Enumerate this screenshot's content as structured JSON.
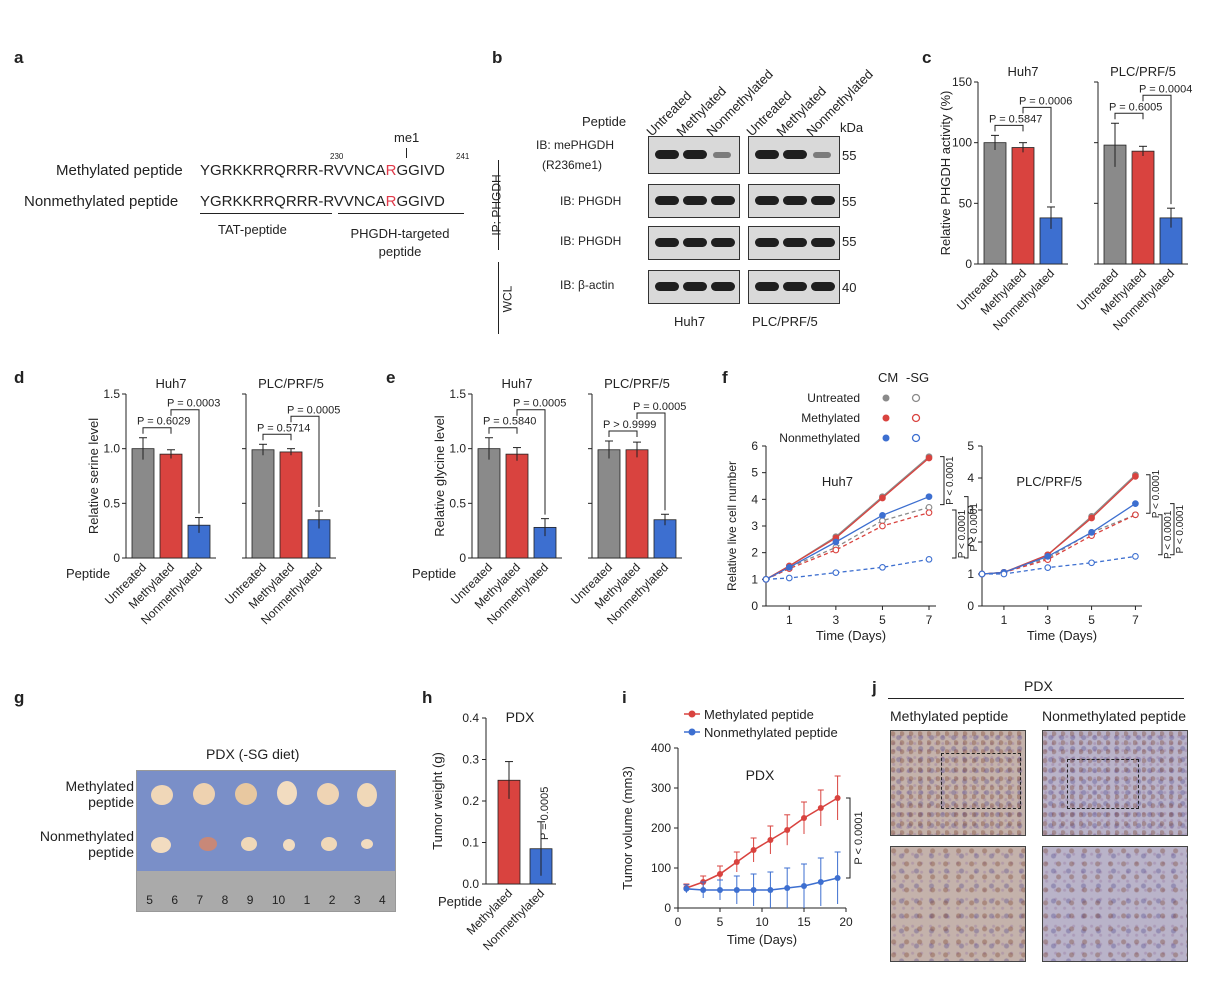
{
  "panels": {
    "a": "a",
    "b": "b",
    "c": "c",
    "d": "d",
    "e": "e",
    "f": "f",
    "g": "g",
    "h": "h",
    "i": "i",
    "j": "j"
  },
  "a": {
    "me1": "me1",
    "num_left": "230",
    "num_right": "241",
    "rows": [
      {
        "label": "Methylated peptide",
        "seq_pre": "YGRKKRRQRRR-RVVNCA",
        "seq_r": "R",
        "seq_post": "GGIVD"
      },
      {
        "label": "Nonmethylated peptide",
        "seq_pre": "YGRKKRRQRRR-RVVNCA",
        "seq_r": "R",
        "seq_post": "GGIVD"
      }
    ],
    "tat_label": "TAT-peptide",
    "phgdh_label_1": "PHGDH-targeted",
    "phgdh_label_2": "peptide",
    "r_color": "#e03a4a"
  },
  "b": {
    "peptide": "Peptide",
    "lanes": [
      "Untreated",
      "Methylated",
      "Nonmethylated",
      "Untreated",
      "Methylated",
      "Nonmethylated"
    ],
    "kda": "kDa",
    "ip": "IP: PHGDH",
    "wcl": "WCL",
    "rows": [
      {
        "label1": "IB: mePHGDH",
        "label2": "(R236me1)",
        "kda": "55"
      },
      {
        "label1": "IB: PHGDH",
        "label2": "",
        "kda": "55"
      },
      {
        "label1": "IB: PHGDH",
        "label2": "",
        "kda": "55"
      },
      {
        "label1": "IB: β-actin",
        "label2": "",
        "kda": "40"
      }
    ],
    "cells": [
      "Huh7",
      "PLC/PRF/5"
    ]
  },
  "colors": {
    "untreated": "#8a8a8a",
    "methylated": "#d9433f",
    "nonmethylated": "#3d6fd0"
  },
  "chart_data": [
    {
      "id": "c",
      "type": "bar",
      "ylabel": "Relative PHGDH activity (%)",
      "ylim": [
        0,
        150
      ],
      "yticks": [
        0,
        50,
        100,
        150
      ],
      "categories": [
        "Untreated",
        "Methylated",
        "Nonmethylated"
      ],
      "groups": [
        {
          "name": "Huh7",
          "values": [
            100,
            96,
            38
          ],
          "errors": [
            6,
            4,
            9
          ],
          "pvals": [
            {
              "text": "P = 0.5847"
            },
            {
              "text": "P = 0.0006"
            }
          ]
        },
        {
          "name": "PLC/PRF/5",
          "values": [
            98,
            93,
            38
          ],
          "errors": [
            18,
            4,
            8
          ],
          "pvals": [
            {
              "text": "P = 0.6005"
            },
            {
              "text": "P = 0.0004"
            }
          ]
        }
      ]
    },
    {
      "id": "d",
      "type": "bar",
      "ylabel": "Relative serine level",
      "xprefix": "Peptide",
      "ylim": [
        0,
        1.5
      ],
      "yticks": [
        0,
        0.5,
        1.0,
        1.5
      ],
      "yticklabels": [
        "0",
        "0.5",
        "1.0",
        "1.5"
      ],
      "categories": [
        "Untreated",
        "Methylated",
        "Nonmethylated"
      ],
      "groups": [
        {
          "name": "Huh7",
          "values": [
            1.0,
            0.95,
            0.3
          ],
          "errors": [
            0.1,
            0.04,
            0.07
          ],
          "pvals": [
            {
              "text": "P = 0.6029"
            },
            {
              "text": "P = 0.0003"
            }
          ]
        },
        {
          "name": "PLC/PRF/5",
          "values": [
            0.99,
            0.97,
            0.35
          ],
          "errors": [
            0.05,
            0.03,
            0.08
          ],
          "pvals": [
            {
              "text": "P = 0.5714"
            },
            {
              "text": "P = 0.0005"
            }
          ]
        }
      ]
    },
    {
      "id": "e",
      "type": "bar",
      "ylabel": "Relative glycine level",
      "xprefix": "Peptide",
      "ylim": [
        0,
        1.5
      ],
      "yticks": [
        0,
        0.5,
        1.0,
        1.5
      ],
      "yticklabels": [
        "0",
        "0.5",
        "1.0",
        "1.5"
      ],
      "categories": [
        "Untreated",
        "Methylated",
        "Nonmethylated"
      ],
      "groups": [
        {
          "name": "Huh7",
          "values": [
            1.0,
            0.95,
            0.28
          ],
          "errors": [
            0.1,
            0.06,
            0.08
          ],
          "pvals": [
            {
              "text": "P = 0.5840"
            },
            {
              "text": "P = 0.0005"
            }
          ]
        },
        {
          "name": "PLC/PRF/5",
          "values": [
            0.99,
            0.99,
            0.35
          ],
          "errors": [
            0.08,
            0.07,
            0.05
          ],
          "pvals": [
            {
              "text": "P > 0.9999"
            },
            {
              "text": "P = 0.0005"
            }
          ]
        }
      ]
    },
    {
      "id": "f",
      "type": "line",
      "ylabel": "Relative live cell number",
      "xlabel": "Time (Days)",
      "x": [
        0,
        1,
        3,
        5,
        7
      ],
      "xticks": [
        1,
        3,
        5,
        7
      ],
      "ylim": [
        0,
        6
      ],
      "yticks": [
        0,
        1,
        2,
        3,
        4,
        5,
        6
      ],
      "legend_header": [
        "CM",
        "-SG"
      ],
      "legend": [
        "Untreated",
        "Methylated",
        "Nonmethylated"
      ],
      "panels": [
        {
          "name": "Huh7",
          "series": [
            {
              "group": "Untreated",
              "cond": "CM",
              "values": [
                1,
                1.5,
                2.6,
                4.1,
                5.6
              ]
            },
            {
              "group": "Untreated",
              "cond": "-SG",
              "values": [
                1,
                1.45,
                2.2,
                3.2,
                3.7
              ]
            },
            {
              "group": "Methylated",
              "cond": "CM",
              "values": [
                1,
                1.5,
                2.55,
                4.05,
                5.55
              ]
            },
            {
              "group": "Methylated",
              "cond": "-SG",
              "values": [
                1,
                1.4,
                2.1,
                3.0,
                3.5
              ]
            },
            {
              "group": "Nonmethylated",
              "cond": "CM",
              "values": [
                1,
                1.45,
                2.4,
                3.4,
                4.1
              ]
            },
            {
              "group": "Nonmethylated",
              "cond": "-SG",
              "values": [
                1,
                1.05,
                1.25,
                1.45,
                1.75
              ]
            }
          ],
          "pvals": [
            "P < 0.0001",
            "P < 0.0001",
            "P < 0.0001"
          ]
        },
        {
          "name": "PLC/PRF/5",
          "ylim": [
            0,
            5
          ],
          "yticks": [
            0,
            1,
            2,
            3,
            4,
            5
          ],
          "series": [
            {
              "group": "Untreated",
              "cond": "CM",
              "values": [
                1,
                1.05,
                1.6,
                2.8,
                4.1
              ]
            },
            {
              "group": "Untreated",
              "cond": "-SG",
              "values": [
                1,
                1.05,
                1.5,
                2.3,
                2.85
              ]
            },
            {
              "group": "Methylated",
              "cond": "CM",
              "values": [
                1,
                1.05,
                1.6,
                2.75,
                4.05
              ]
            },
            {
              "group": "Methylated",
              "cond": "-SG",
              "values": [
                1,
                1.05,
                1.45,
                2.2,
                2.85
              ]
            },
            {
              "group": "Nonmethylated",
              "cond": "CM",
              "values": [
                1,
                1.05,
                1.55,
                2.3,
                3.2
              ]
            },
            {
              "group": "Nonmethylated",
              "cond": "-SG",
              "values": [
                1,
                1.0,
                1.2,
                1.35,
                1.55
              ]
            }
          ],
          "pvals": [
            "P < 0.0001",
            "P < 0.0001",
            "P < 0.0001"
          ]
        }
      ]
    },
    {
      "id": "h",
      "type": "bar",
      "title": "PDX",
      "ylabel": "Tumor weight (g)",
      "xprefix": "Peptide",
      "ylim": [
        0,
        0.4
      ],
      "yticks": [
        0,
        0.1,
        0.2,
        0.3,
        0.4
      ],
      "yticklabels": [
        "0.0",
        "0.1",
        "0.2",
        "0.3",
        "0.4"
      ],
      "categories": [
        "Methylated",
        "Nonmethylated"
      ],
      "values": [
        0.25,
        0.085
      ],
      "errors": [
        0.045,
        0.065
      ],
      "pval": "P = 0.0005"
    },
    {
      "id": "i",
      "type": "line",
      "title": "PDX",
      "ylabel": "Tumor volume (mm3)",
      "xlabel": "Time (Days)",
      "xlim": [
        0,
        20
      ],
      "xticks": [
        0,
        5,
        10,
        15,
        20
      ],
      "ylim": [
        0,
        400
      ],
      "yticks": [
        0,
        100,
        200,
        300,
        400
      ],
      "series": [
        {
          "name": "Methylated peptide",
          "x": [
            1,
            3,
            5,
            7,
            9,
            11,
            13,
            15,
            17,
            19
          ],
          "values": [
            50,
            65,
            85,
            115,
            145,
            170,
            195,
            225,
            250,
            275
          ],
          "errors": [
            10,
            15,
            20,
            25,
            30,
            35,
            38,
            40,
            45,
            55
          ]
        },
        {
          "name": "Nonmethylated peptide",
          "x": [
            1,
            3,
            5,
            7,
            9,
            11,
            13,
            15,
            17,
            19
          ],
          "values": [
            48,
            45,
            45,
            45,
            45,
            45,
            50,
            55,
            65,
            75
          ],
          "errors": [
            10,
            20,
            25,
            35,
            40,
            45,
            50,
            55,
            60,
            65
          ]
        }
      ],
      "pval": "P < 0.0001"
    }
  ],
  "g": {
    "title": "PDX (-SG diet)",
    "row1_l1": "Methylated",
    "row1_l2": "peptide",
    "row2_l1": "Nonmethylated",
    "row2_l2": "peptide",
    "ruler": [
      "5",
      "6",
      "7",
      "8",
      "9",
      "10",
      "1",
      "2",
      "3",
      "4"
    ]
  },
  "j": {
    "title": "PDX",
    "left": "Methylated peptide",
    "right": "Nonmethylated peptide"
  }
}
